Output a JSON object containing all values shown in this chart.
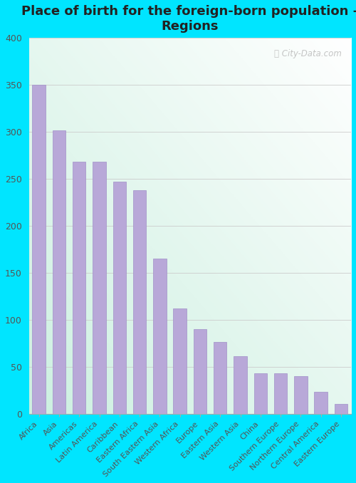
{
  "title": "Place of birth for the foreign-born population -\nRegions",
  "categories": [
    "Africa",
    "Asia",
    "Americas",
    "Latin America",
    "Caribbean",
    "Eastern Africa",
    "South Eastern Asia",
    "Western Africa",
    "Europe",
    "Eastern Asia",
    "Western Asia",
    "China",
    "Southern Europe",
    "Northern Europe",
    "Central America",
    "Eastern Europe"
  ],
  "values": [
    350,
    301,
    268,
    268,
    247,
    238,
    165,
    112,
    90,
    76,
    61,
    43,
    43,
    40,
    23,
    10
  ],
  "bar_color": "#b8a8d8",
  "bar_edge_color": "#a090c8",
  "outer_background": "#00e5ff",
  "ylim": [
    0,
    400
  ],
  "yticks": [
    0,
    50,
    100,
    150,
    200,
    250,
    300,
    350,
    400
  ],
  "grid_color": "#cccccc",
  "title_fontsize": 13,
  "tick_label_fontsize": 8,
  "watermark_text": "City-Data.com"
}
